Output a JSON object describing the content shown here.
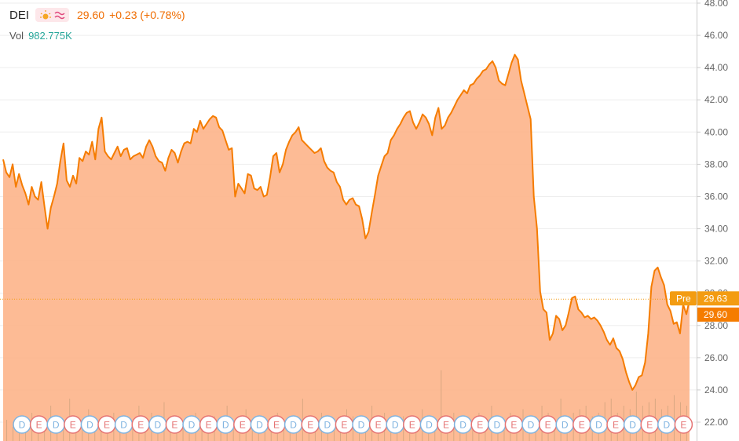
{
  "header": {
    "symbol": "DEI",
    "price": "29.60",
    "change": "+0.23 (+0.78%)",
    "volume_label": "Vol",
    "volume_value": "982.775K"
  },
  "icons": {
    "market_status": "sun-icon",
    "data_mode": "wave-icon"
  },
  "colors": {
    "line": "#f57c00",
    "area": "#fdb48a",
    "volume": "#c9a07a",
    "dividend": "#7fb3e0",
    "earnings": "#e57373",
    "pre_tag": "#f39c12",
    "price_tag": "#f57c00"
  },
  "chart_data": {
    "type": "area",
    "ylim": [
      21.5,
      48.5
    ],
    "y_ticks": [
      "48.00",
      "46.00",
      "44.00",
      "42.00",
      "40.00",
      "38.00",
      "36.00",
      "34.00",
      "32.00",
      "30.00",
      "28.00",
      "26.00",
      "24.00",
      "22.00"
    ],
    "series": [
      {
        "values": [
          38.3,
          37.5,
          37.2,
          38.0,
          36.6,
          37.4,
          36.7,
          36.2,
          35.5,
          36.6,
          36.0,
          35.8,
          36.9,
          35.4,
          34.0,
          35.3,
          36.0,
          36.8,
          38.2,
          39.3,
          37.0,
          36.6,
          37.3,
          36.8,
          38.4,
          38.2,
          38.8,
          38.6,
          39.4,
          38.3,
          40.2,
          40.9,
          38.8,
          38.5,
          38.3,
          38.7,
          39.1,
          38.5,
          38.9,
          39.0,
          38.3,
          38.5,
          38.6,
          38.7,
          38.4,
          39.1,
          39.5,
          39.1,
          38.5,
          38.2,
          38.1,
          37.6,
          38.4,
          38.9,
          38.7,
          38.1,
          38.8,
          39.3,
          39.4,
          39.3,
          40.2,
          40.0,
          40.7,
          40.2,
          40.5,
          40.8,
          41.0,
          40.9,
          40.3,
          40.1,
          39.5,
          38.9,
          39.0,
          36.0,
          36.8,
          36.5,
          36.2,
          37.4,
          37.3,
          36.5,
          36.4,
          36.6,
          36.0,
          36.1,
          37.2,
          38.5,
          38.7,
          37.5,
          38.0,
          38.9,
          39.4,
          39.8,
          40.0,
          40.3,
          39.5,
          39.3,
          39.1,
          38.9,
          38.7,
          38.8,
          39.0,
          38.2,
          37.8,
          37.6,
          37.5,
          36.9,
          36.6,
          35.8,
          35.5,
          35.8,
          35.9,
          35.5,
          35.4,
          34.6,
          33.4,
          33.8,
          35.0,
          36.1,
          37.3,
          37.9,
          38.5,
          38.7,
          39.5,
          39.8,
          40.2,
          40.5,
          40.9,
          41.2,
          41.3,
          40.6,
          40.2,
          40.6,
          41.1,
          40.9,
          40.5,
          39.8,
          40.9,
          41.5,
          40.2,
          40.4,
          40.9,
          41.2,
          41.6,
          42.0,
          42.3,
          42.6,
          42.4,
          42.9,
          43.0,
          43.3,
          43.5,
          43.8,
          43.9,
          44.2,
          44.4,
          44.0,
          43.2,
          43.0,
          42.9,
          43.6,
          44.3,
          44.8,
          44.5,
          43.2,
          42.4,
          41.6,
          40.8,
          36.0,
          34.0,
          30.1,
          29.0,
          28.8,
          27.1,
          27.5,
          28.6,
          28.4,
          27.7,
          28.0,
          28.8,
          29.7,
          29.8,
          29.0,
          28.8,
          28.5,
          28.6,
          28.4,
          28.5,
          28.3,
          28.0,
          27.6,
          27.1,
          26.8,
          27.2,
          26.6,
          26.4,
          25.9,
          25.1,
          24.5,
          24.0,
          24.3,
          24.8,
          24.9,
          25.7,
          27.5,
          30.4,
          31.4,
          31.6,
          31.0,
          30.5,
          29.3,
          28.9,
          28.1,
          28.2,
          27.5,
          29.3,
          28.7,
          29.6
        ],
        "fill": "area"
      }
    ],
    "volume_bars": [
      0.3,
      0.2,
      0.35,
      0.15,
      0.4,
      0.2,
      0.25,
      0.5,
      0.3,
      0.2,
      0.6,
      0.25,
      0.3,
      0.45,
      0.2,
      0.3,
      0.35,
      0.4,
      0.25,
      0.3,
      0.2,
      0.5,
      0.3,
      0.4,
      0.25,
      0.55,
      0.3,
      0.35,
      0.2,
      0.25,
      0.4,
      0.3,
      0.2,
      0.35,
      0.3,
      0.5,
      0.25,
      0.3,
      0.45,
      0.2,
      0.35,
      0.3,
      0.25,
      0.4,
      0.3,
      0.2,
      0.35,
      0.6,
      0.3,
      0.25,
      0.4,
      0.3,
      0.2,
      0.3,
      0.45,
      0.35,
      0.25,
      0.3,
      0.5,
      0.3,
      0.4,
      0.3,
      0.25,
      0.35,
      0.3,
      0.2,
      0.45,
      0.3,
      0.25,
      1.0,
      0.3,
      0.4,
      0.35,
      0.3,
      0.25,
      0.4,
      0.3,
      0.5,
      0.35,
      0.3,
      0.4,
      0.3,
      0.45,
      0.3,
      0.35,
      0.5,
      0.4,
      0.3,
      0.6,
      0.35,
      0.4,
      0.45,
      0.5,
      0.35,
      0.4,
      0.55,
      0.6,
      0.4,
      0.5,
      0.45,
      0.7,
      0.5,
      0.55,
      0.6,
      0.45,
      0.5,
      0.65,
      0.55,
      0.5
    ],
    "event_markers": [
      "D",
      "E",
      "D",
      "E",
      "D",
      "E",
      "D",
      "E",
      "D",
      "E",
      "D",
      "E",
      "D",
      "E",
      "D",
      "E",
      "D",
      "E",
      "D",
      "E",
      "D",
      "E",
      "D",
      "E",
      "D",
      "E",
      "D",
      "E",
      "D",
      "E",
      "D",
      "E",
      "D",
      "E",
      "D",
      "E",
      "D",
      "E",
      "D",
      "E"
    ],
    "tags": [
      {
        "label": "Pre",
        "value": "29.63"
      },
      {
        "label": "",
        "value": "29.60"
      }
    ]
  }
}
